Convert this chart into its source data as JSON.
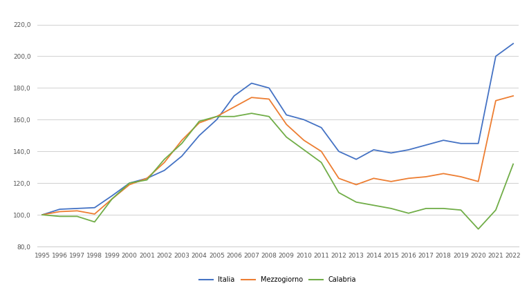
{
  "years": [
    1995,
    1996,
    1997,
    1998,
    1999,
    2000,
    2001,
    2002,
    2003,
    2004,
    2005,
    2006,
    2007,
    2008,
    2009,
    2010,
    2011,
    2012,
    2013,
    2014,
    2015,
    2016,
    2017,
    2018,
    2019,
    2020,
    2021,
    2022
  ],
  "italia": [
    100.0,
    103.5,
    104.0,
    104.5,
    112.0,
    120.0,
    123.0,
    128.0,
    137.0,
    150.0,
    160.0,
    175.0,
    183.0,
    180.0,
    163.0,
    160.0,
    155.0,
    140.0,
    135.0,
    141.0,
    139.0,
    141.0,
    144.0,
    147.0,
    145.0,
    145.0,
    200.0,
    208.0
  ],
  "mezzogiorno": [
    100.0,
    102.0,
    102.5,
    100.5,
    110.0,
    119.0,
    123.0,
    133.0,
    147.0,
    158.0,
    162.0,
    168.0,
    174.0,
    173.0,
    157.0,
    147.0,
    140.0,
    123.0,
    119.0,
    123.0,
    121.0,
    123.0,
    124.0,
    126.0,
    124.0,
    121.0,
    172.0,
    175.0
  ],
  "calabria": [
    100.0,
    99.0,
    99.0,
    95.5,
    110.0,
    120.0,
    122.0,
    135.0,
    145.0,
    159.0,
    162.0,
    162.0,
    164.0,
    162.0,
    149.0,
    141.0,
    133.0,
    114.0,
    108.0,
    106.0,
    104.0,
    101.0,
    104.0,
    104.0,
    103.0,
    91.0,
    103.0,
    132.0
  ],
  "italia_color": "#4472C4",
  "mezzogiorno_color": "#ED7D31",
  "calabria_color": "#70AD47",
  "background_color": "#FFFFFF",
  "grid_color": "#D0D0D0",
  "ylim_min": 80,
  "ylim_max": 230,
  "yticks": [
    80.0,
    100.0,
    120.0,
    140.0,
    160.0,
    180.0,
    200.0,
    220.0
  ],
  "legend_labels": [
    "Italia",
    "Mezzogiorno",
    "Calabria"
  ]
}
